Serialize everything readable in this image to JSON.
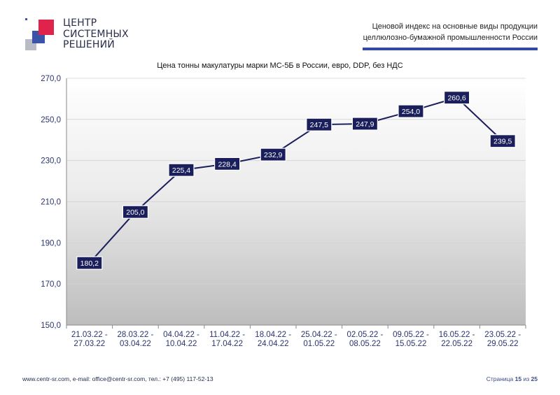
{
  "header": {
    "logo_lines": [
      "ЦЕНТР",
      "СИСТЕМНЫХ",
      "РЕШЕНИЙ"
    ],
    "subtitle_line1": "Ценовой  индекс  на  основные виды продукции",
    "subtitle_line2": "целлюлозно-бумажной промышленности России",
    "accent_color": "#3348a0"
  },
  "chart_data": {
    "type": "line",
    "title": "Цена тонны макулатуры марки МС-5Б в России, евро, DDP, без НДС",
    "categories": [
      [
        "21.03.22 -",
        "27.03.22"
      ],
      [
        "28.03.22 -",
        "03.04.22"
      ],
      [
        "04.04.22 -",
        "10.04.22"
      ],
      [
        "11.04.22 -",
        "17.04.22"
      ],
      [
        "18.04.22 -",
        "24.04.22"
      ],
      [
        "25.04.22 -",
        "01.05.22"
      ],
      [
        "02.05.22 -",
        "08.05.22"
      ],
      [
        "09.05.22 -",
        "15.05.22"
      ],
      [
        "16.05.22 -",
        "22.05.22"
      ],
      [
        "23.05.22 -",
        "29.05.22"
      ]
    ],
    "values": [
      180.2,
      205.0,
      225.4,
      228.4,
      232.9,
      247.5,
      247.9,
      254.0,
      260.6,
      239.5
    ],
    "data_labels": [
      "180,2",
      "205,0",
      "225,4",
      "228,4",
      "232,9",
      "247,5",
      "247,9",
      "254,0",
      "260,6",
      "239,5"
    ],
    "y_ticks": [
      "150,0",
      "170,0",
      "190,0",
      "210,0",
      "230,0",
      "250,0",
      "270,0"
    ],
    "ylim": [
      150,
      270
    ],
    "grid": true,
    "line_color": "#1a1f5c",
    "label_bg_color": "#1a1f5c"
  },
  "footer": {
    "contacts": "www.centr-sr.com, e-mail: office@centr-sr.com, тел.: +7 (495) 117-52-13",
    "page_prefix": "Страница",
    "page_current": "15",
    "page_sep": "из",
    "page_total": "25"
  }
}
